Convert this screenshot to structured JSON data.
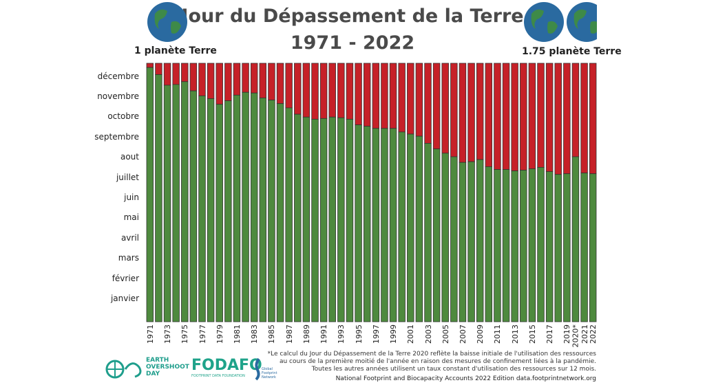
{
  "header": {
    "title": "Jour du Dépassement de la Terre",
    "subtitle": "1971 - 2022",
    "left_label": "1 planète Terre",
    "right_label": "1.75 planète Terre"
  },
  "icons": {
    "globe": "earth-globe-icon"
  },
  "colors": {
    "overshoot": "#4e8a3e",
    "remaining": "#c62128",
    "bar_edge": "#333333"
  },
  "chart_data": {
    "type": "bar",
    "stacked": true,
    "title": "Jour du Dépassement de la Terre",
    "subtitle": "1971 - 2022",
    "y_tick_labels": [
      "janvier",
      "février",
      "mars",
      "avril",
      "mai",
      "juin",
      "juillet",
      "aout",
      "septembre",
      "octobre",
      "novembre",
      "décembre"
    ],
    "ylim": [
      0,
      365
    ],
    "x_tick_labels": [
      "1971",
      "1973",
      "1975",
      "1977",
      "1979",
      "1981",
      "1983",
      "1985",
      "1987",
      "1989",
      "1991",
      "1993",
      "1995",
      "1997",
      "1999",
      "2001",
      "2003",
      "2005",
      "2007",
      "2009",
      "2011",
      "2013",
      "2015",
      "2017",
      "2019",
      "2020*",
      "2021",
      "2022"
    ],
    "categories": [
      1971,
      1972,
      1973,
      1974,
      1975,
      1976,
      1977,
      1978,
      1979,
      1980,
      1981,
      1982,
      1983,
      1984,
      1985,
      1986,
      1987,
      1988,
      1989,
      1990,
      1991,
      1992,
      1993,
      1994,
      1995,
      1996,
      1997,
      1998,
      1999,
      2000,
      2001,
      2002,
      2003,
      2004,
      2005,
      2006,
      2007,
      2008,
      2009,
      2010,
      2011,
      2012,
      2013,
      2014,
      2015,
      2016,
      2017,
      2018,
      2019,
      2020,
      2021,
      2022
    ],
    "overshoot_day_of_year": [
      359,
      349,
      334,
      335,
      339,
      326,
      319,
      315,
      307,
      312,
      320,
      324,
      323,
      316,
      313,
      308,
      302,
      293,
      289,
      286,
      287,
      289,
      288,
      286,
      278,
      276,
      273,
      273,
      273,
      268,
      265,
      262,
      252,
      244,
      238,
      233,
      225,
      226,
      229,
      219,
      215,
      215,
      213,
      214,
      216,
      218,
      212,
      208,
      209,
      233,
      210,
      209
    ],
    "grid": false,
    "legend": "none"
  },
  "footer": {
    "note_lines": [
      "*Le calcul du Jour du Dépassement de la Terre 2020 reflète la baisse initiale de l'utilisation des ressources",
      "au cours de la première moitié de l'année en raison des mesures de confinement liées à la pandémie.",
      "Toutes les autres années utilisent un taux constant d'utilisation des ressources sur 12 mois."
    ],
    "source": "National Footprint and Biocapacity Accounts 2022  Edition data.footprintnetwork.org",
    "logos": {
      "eod": [
        "EARTH",
        "OVERSHOOT",
        "DAY"
      ],
      "fodafo": "FODAFO",
      "fodafo_sub": "FOOTPRINT DATA FOUNDATION",
      "gfn": "Global Footprint Network"
    }
  }
}
